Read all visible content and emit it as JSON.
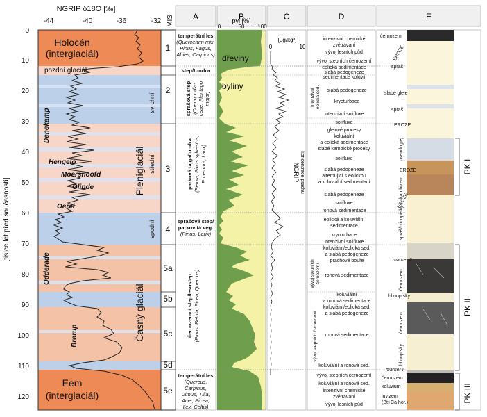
{
  "left_panel": {
    "title": "NGRIP δ18O [‰]",
    "x_ticks": [
      "-44",
      "-40",
      "-36",
      "-32"
    ],
    "mis_header": "MIS",
    "y_axis_label": "[tisíce let před současností]",
    "y_ticks": [
      "0",
      "10",
      "20",
      "30",
      "40",
      "50",
      "60",
      "70",
      "80",
      "90",
      "100",
      "110",
      "120"
    ],
    "holocene": "Holocén",
    "holocene_sub": "(interglaciál)",
    "late_glacial": "pozdní glaciál",
    "pleniglacial": "Pleniglaciál",
    "early_glacial": "Časný glaciál",
    "eem": "Eem",
    "eem_sub": "(interglaciál)",
    "svrchni": "svrchní",
    "stredni": "střední",
    "spodni": "spodní",
    "interstadials": [
      "Denekamp",
      "Hengelo",
      "Moershoofd",
      "Glinde",
      "Oerel",
      "Odderade",
      "Brørup"
    ],
    "mis_stages": [
      "1",
      "2",
      "3",
      "4",
      "5a",
      "5b",
      "5c",
      "5d",
      "5e"
    ]
  },
  "column_headers": [
    "A",
    "B",
    "C",
    "D",
    "E"
  ],
  "column_a": [
    {
      "head": "temperátní les",
      "sub": [
        "(Quercetum mix,",
        "Pinus, Fagus,",
        "Abies, Carpinus)"
      ]
    },
    {
      "head": "step/tundra",
      "sub": []
    },
    {
      "head": "sprašová step",
      "sub": [
        "(Chenopodia-",
        "ceae, Plantago",
        "major)"
      ]
    },
    {
      "head": "parková tajga/tundra",
      "sub": [
        "(Betula, Pinus sylvestris,",
        "P. cembra, Larix)"
      ]
    },
    {
      "head": "sprašová step/",
      "sub": [
        "parkovitá veg.",
        "(Pinus, Larix)"
      ]
    },
    {
      "head": "černozemní step/lesostep",
      "sub": [
        "(Pinus, Betula, Picea, Quercus)"
      ]
    },
    {
      "head": "temperátní les",
      "sub": [
        "(Quercus,",
        "Carpinus,",
        "Ulmus, Tilia,",
        "Acer, Picea,",
        "Ilex, Celtis)"
      ]
    }
  ],
  "column_b": {
    "axis_label": "pyl [%]",
    "ticks": [
      "0",
      "50",
      "100"
    ],
    "label_trees": "dřeviny",
    "label_herbs": "byliny"
  },
  "column_c": {
    "axis_label": "[μg/kg³]",
    "ticks": [
      "0",
      "10"
    ],
    "vertical_label": "NGRIP",
    "vertical_sub": "koncentrace prachu"
  },
  "column_d": [
    "intenzivní chemické",
    "zvětrávání",
    "vývoj lesních půd",
    "vývoj stepních černozemí",
    "eolická sedimentace",
    "slabá pedogeneze",
    "sedimentace koluvií",
    "slabá pedogeneze",
    "kryoturbace",
    "intenzivní solifluxe",
    "solifluxe",
    "glejové procesy",
    "koluviální",
    "a eolická sedimentace",
    "slabé kambické procesy",
    "solifluxe",
    "slabá pedogeneze",
    "alternující s eolickou",
    "a koluviální sedimentací",
    "slabá pedogeneze",
    "solifluxe",
    "ronová sedimentace",
    "eolická a koluviální",
    "sedimentace",
    "kryoturbace",
    "intenzivní solifluxe",
    "koluviální/eolická sed.",
    "a slabá pedogeneze",
    "prachové bouře",
    "ronová sedimentace",
    "koluviální",
    "a ronová sedimentace",
    "koluviální/eolická sed.",
    "a slabá pedogeneze",
    "ronová sedimentace",
    "koluviální a ronová sed.",
    "vývoj stepních černozemí",
    "koluviální a ronová sed.",
    "intenzivní chemické",
    "zvětrávání",
    "vývoj lesních půd"
  ],
  "column_d_side": [
    "intenzivní",
    "eolická sed.",
    "vývoj stepních",
    "černozemí",
    "vývoj stepních černozemí"
  ],
  "column_e": {
    "labels": [
      "černozem",
      "spraš",
      "slabé gleje",
      "spraš",
      "EROZE",
      "EROZE",
      "EROZE",
      "EROZE",
      "pseudoglej",
      "kambizem",
      "spraš/hlinopísky",
      "marker II",
      "černozem",
      "hlinopísky",
      "černozem",
      "hlinopísky",
      "marker I",
      "černozem",
      "koluvium",
      "luvizem",
      "(Bt+Ca hor.)"
    ],
    "pk": [
      "PK I",
      "PK II",
      "PK III"
    ]
  },
  "colors": {
    "interglacial": "#ee8a55",
    "stadial_blue": "#bdd0ea",
    "interstadial_pink": "#f7d6c8",
    "tree_green": "#6f9e4c",
    "herb_yellow": "#f4f2a6"
  }
}
